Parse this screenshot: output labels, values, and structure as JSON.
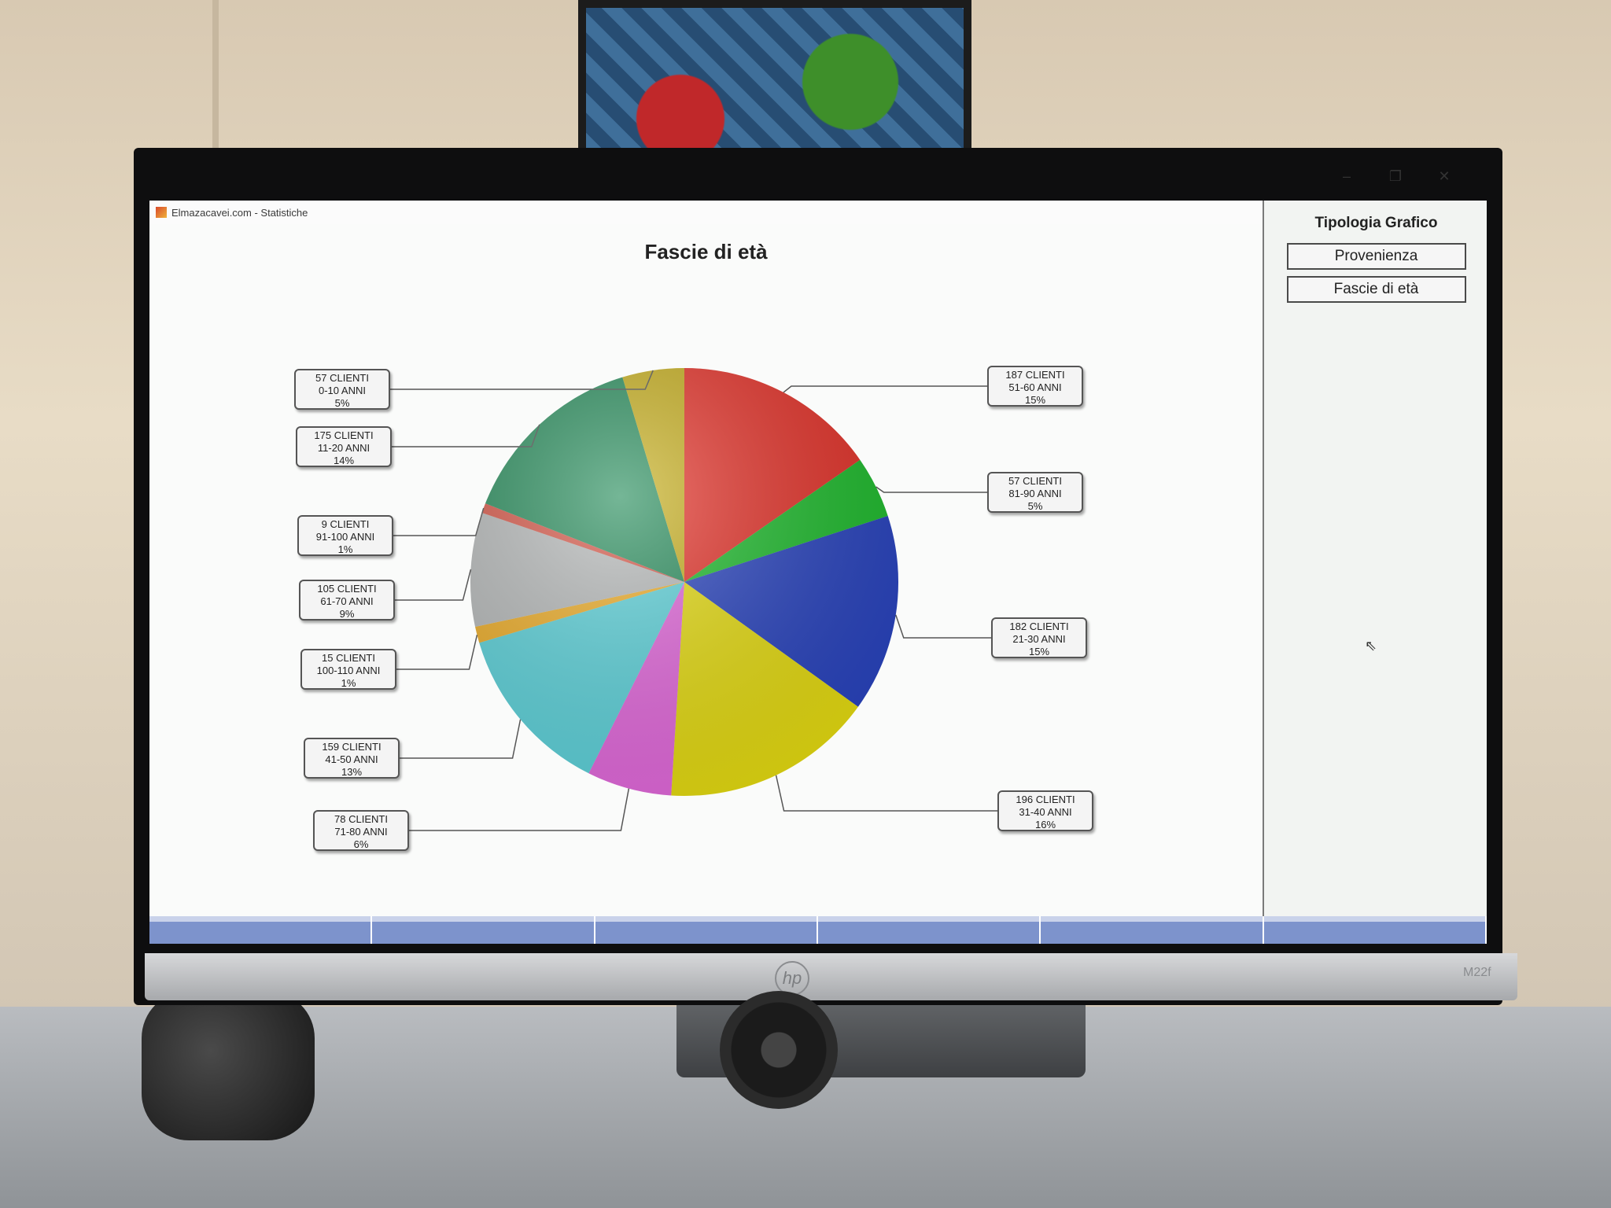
{
  "window": {
    "title": "Elmazacavei.com - Statistiche",
    "controls": [
      "–",
      "❐",
      "✕"
    ]
  },
  "chart_data": {
    "type": "pie",
    "title": "Fascie di età",
    "slices": [
      {
        "label": "51-60 ANNI",
        "clients": "187 CLIENTI",
        "pct": "15%",
        "value": 187,
        "color": "#e8332a"
      },
      {
        "label": "81-90 ANNI",
        "clients": "57 CLIENTI",
        "pct": "5%",
        "value": 57,
        "color": "#1fbf2e"
      },
      {
        "label": "21-30 ANNI",
        "clients": "182 CLIENTI",
        "pct": "15%",
        "value": 182,
        "color": "#2a45c2"
      },
      {
        "label": "31-40 ANNI",
        "clients": "196 CLIENTI",
        "pct": "16%",
        "value": 196,
        "color": "#e9df12"
      },
      {
        "label": "71-80 ANNI",
        "clients": "78 CLIENTI",
        "pct": "6%",
        "value": 78,
        "color": "#e76be0"
      },
      {
        "label": "41-50 ANNI",
        "clients": "159 CLIENTI",
        "pct": "13%",
        "value": 159,
        "color": "#5fd6de"
      },
      {
        "label": "100-110 ANNI",
        "clients": "15 CLIENTI",
        "pct": "1%",
        "value": 15,
        "color": "#f2b12a"
      },
      {
        "label": "61-70 ANNI",
        "clients": "105 CLIENTI",
        "pct": "9%",
        "value": 105,
        "color": "#b9bcbc"
      },
      {
        "label": "91-100 ANNI",
        "clients": "9 CLIENTI",
        "pct": "1%",
        "value": 9,
        "color": "#d9594a"
      },
      {
        "label": "11-20 ANNI",
        "clients": "175 CLIENTI",
        "pct": "14%",
        "value": 175,
        "color": "#2a8f5e"
      },
      {
        "label": "0-10 ANNI",
        "clients": "57 CLIENTI",
        "pct": "5%",
        "value": 57,
        "color": "#c9b11f"
      }
    ]
  },
  "sidebar": {
    "title": "Tipologia Grafico",
    "buttons": [
      "Provenienza",
      "Fascie di età"
    ]
  },
  "monitor": {
    "model": "M22f"
  }
}
